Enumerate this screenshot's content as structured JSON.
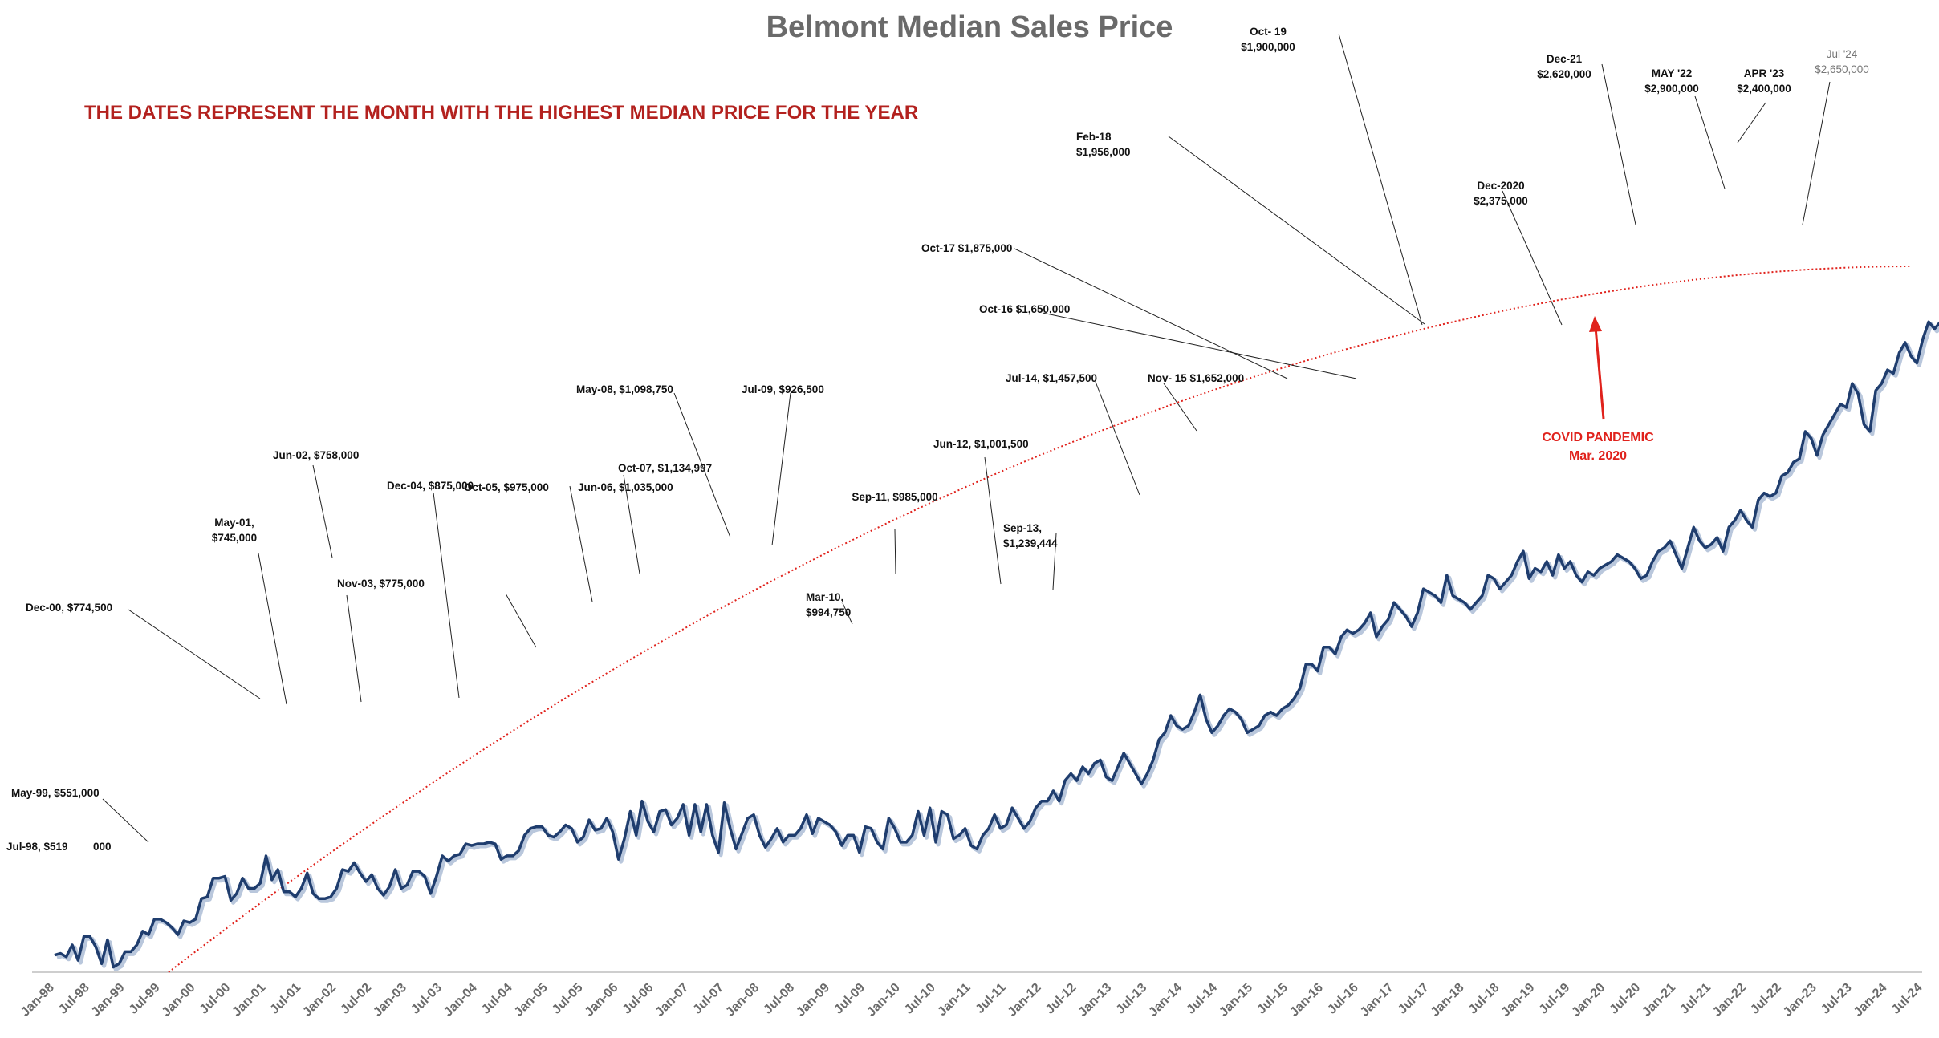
{
  "chart_data": {
    "type": "line",
    "title": "Belmont Median Sales Price",
    "subtitle": "THE DATES REPRESENT THE MONTH WITH THE HIGHEST MEDIAN PRICE FOR THE YEAR",
    "xlabel": "",
    "ylabel": "",
    "x_start": "Jan-98",
    "x_end": "Oct-24",
    "tick_labels": [
      "Jan-98",
      "Jul-98",
      "Jan-99",
      "Jul-99",
      "Jan-00",
      "Jul-00",
      "Jan-01",
      "Jul-01",
      "Jan-02",
      "Jul-02",
      "Jan-03",
      "Jul-03",
      "Jan-04",
      "Jul-04",
      "Jan-05",
      "Jul-05",
      "Jan-06",
      "Jul-06",
      "Jan-07",
      "Jul-07",
      "Jan-08",
      "Jul-08",
      "Jan-09",
      "Jul-09",
      "Jan-10",
      "Jul-10",
      "Jan-11",
      "Jul-11",
      "Jan-12",
      "Jul-12",
      "Jan-13",
      "Jul-13",
      "Jan-14",
      "Jul-14",
      "Jan-15",
      "Jul-15",
      "Jan-16",
      "Jul-16",
      "Jan-17",
      "Jul-17",
      "Jan-18",
      "Jul-18",
      "Jan-19",
      "Jul-19",
      "Jan-20",
      "Jul-20",
      "Jan-21",
      "Jul-21",
      "Jan-22",
      "Jul-22",
      "Jan-23",
      "Jul-23",
      "Jan-24",
      "Jul-24"
    ],
    "ylim": [
      300000,
      3000000
    ],
    "grid": false,
    "legend": "none",
    "series": [
      {
        "values": [
          350000,
          355000,
          345000,
          380000,
          335000,
          405000,
          405000,
          375000,
          325000,
          395000,
          315000,
          325000,
          360000,
          360000,
          380000,
          420000,
          410000,
          455000,
          455000,
          445000,
          430000,
          410000,
          450000,
          445000,
          455000,
          515000,
          520000,
          575000,
          575000,
          580000,
          510000,
          530000,
          575000,
          545000,
          545000,
          560000,
          640000,
          570000,
          600000,
          535000,
          535000,
          520000,
          545000,
          590000,
          530000,
          515000,
          515000,
          520000,
          545000,
          600000,
          595000,
          620000,
          590000,
          565000,
          585000,
          545000,
          525000,
          550000,
          600000,
          545000,
          555000,
          595000,
          595000,
          580000,
          530000,
          580000,
          640000,
          625000,
          640000,
          645000,
          675000,
          670000,
          675000,
          675000,
          680000,
          675000,
          630000,
          640000,
          640000,
          655000,
          700000,
          720000,
          725000,
          725000,
          700000,
          695000,
          710000,
          730000,
          720000,
          680000,
          695000,
          745000,
          715000,
          720000,
          750000,
          710000,
          630000,
          690000,
          770000,
          700000,
          800000,
          740000,
          710000,
          770000,
          775000,
          730000,
          750000,
          790000,
          700000,
          790000,
          710000,
          790000,
          700000,
          650000,
          795000,
          720000,
          660000,
          705000,
          750000,
          760000,
          700000,
          665000,
          690000,
          720000,
          680000,
          700000,
          700000,
          720000,
          760000,
          705000,
          750000,
          740000,
          730000,
          710000,
          670000,
          700000,
          700000,
          650000,
          725000,
          720000,
          680000,
          660000,
          750000,
          720000,
          680000,
          680000,
          700000,
          770000,
          700000,
          780000,
          680000,
          770000,
          760000,
          690000,
          700000,
          720000,
          670000,
          660000,
          700000,
          720000,
          760000,
          720000,
          730000,
          780000,
          750000,
          720000,
          740000,
          780000,
          800000,
          800000,
          830000,
          800000,
          860000,
          880000,
          860000,
          900000,
          880000,
          910000,
          920000,
          870000,
          860000,
          900000,
          940000,
          910000,
          880000,
          850000,
          880000,
          920000,
          980000,
          1000000,
          1050000,
          1020000,
          1010000,
          1020000,
          1060000,
          1110000,
          1040000,
          1000000,
          1020000,
          1050000,
          1070000,
          1060000,
          1040000,
          1000000,
          1010000,
          1020000,
          1050000,
          1060000,
          1050000,
          1070000,
          1080000,
          1100000,
          1130000,
          1200000,
          1200000,
          1180000,
          1250000,
          1250000,
          1230000,
          1280000,
          1300000,
          1290000,
          1300000,
          1320000,
          1350000,
          1280000,
          1310000,
          1330000,
          1380000,
          1360000,
          1340000,
          1310000,
          1350000,
          1420000,
          1410000,
          1400000,
          1380000,
          1460000,
          1400000,
          1390000,
          1380000,
          1360000,
          1380000,
          1400000,
          1460000,
          1450000,
          1420000,
          1440000,
          1460000,
          1500000,
          1530000,
          1450000,
          1480000,
          1470000,
          1500000,
          1460000,
          1520000,
          1480000,
          1500000,
          1460000,
          1440000,
          1470000,
          1460000,
          1480000,
          1490000,
          1500000,
          1520000,
          1510000,
          1500000,
          1480000,
          1450000,
          1460000,
          1500000,
          1530000,
          1540000,
          1560000,
          1520000,
          1480000,
          1540000,
          1600000,
          1560000,
          1540000,
          1550000,
          1570000,
          1530000,
          1600000,
          1620000,
          1650000,
          1620000,
          1600000,
          1680000,
          1700000,
          1690000,
          1700000,
          1750000,
          1760000,
          1790000,
          1800000,
          1880000,
          1860000,
          1810000,
          1870000,
          1900000,
          1930000,
          1960000,
          1950000,
          2020000,
          1990000,
          1900000,
          1880000,
          2000000,
          2020000,
          2060000,
          2050000,
          2110000,
          2140000,
          2100000,
          2080000,
          2150000,
          2200000,
          2180000,
          2200000,
          2260000,
          2260000,
          2250000,
          2300000,
          2320000,
          2340000,
          2350000,
          2380000,
          2400000,
          2420000,
          2450000,
          2440000,
          2470000,
          2480000,
          2500000,
          2530000,
          2550000,
          2560000,
          2580000,
          2600000,
          2620000,
          2650000
        ]
      }
    ],
    "annotations": [
      {
        "label": "Jul-98, $519",
        "suffix": "000"
      },
      {
        "label": "May-99, $551,000"
      },
      {
        "label": "Dec-00, $774,500"
      },
      {
        "label": "May-01,",
        "label2": "$745,000"
      },
      {
        "label": "Jun-02, $758,000"
      },
      {
        "label": "Nov-03, $775,000"
      },
      {
        "label": "Dec-04, $875,000"
      },
      {
        "label": "Oct-05, $975,000"
      },
      {
        "label": "Jun-06, $1,035,000"
      },
      {
        "label": "Oct-07, $1,134,997"
      },
      {
        "label": "May-08, $1,098,750"
      },
      {
        "label": "Jul-09, $926,500"
      },
      {
        "label": "Mar-10,",
        "label2": "$994,750"
      },
      {
        "label": "Sep-11, $985,000"
      },
      {
        "label": "Jun-12, $1,001,500"
      },
      {
        "label": "Sep-13,",
        "label2": "$1,239,444"
      },
      {
        "label": "Jul-14, $1,457,500"
      },
      {
        "label": "Nov- 15 $1,652,000"
      },
      {
        "label": "Oct-16 $1,650,000"
      },
      {
        "label": "Oct-17 $1,875,000"
      },
      {
        "label": "Feb-18",
        "label2": "$1,956,000"
      },
      {
        "label": "Oct- 19",
        "label2": "$1,900,000"
      },
      {
        "label": "Dec-2020",
        "label2": "$2,375,000"
      },
      {
        "label": "Dec-21",
        "label2": "$2,620,000"
      },
      {
        "label": "MAY '22",
        "label2": "$2,900,000"
      },
      {
        "label": "APR '23",
        "label2": "$2,400,000"
      },
      {
        "label": "Jul '24",
        "label2": "$2,650,000"
      }
    ],
    "callout": {
      "line1": "COVID PANDEMIC",
      "line2": "Mar. 2020"
    },
    "colors": {
      "line": "#1f3d6e",
      "shadow": "#b9c7dc",
      "trend": "#e0221c",
      "title": "#6a6a6a",
      "subtitle": "#b3211e",
      "callout": "#e0221c"
    }
  }
}
